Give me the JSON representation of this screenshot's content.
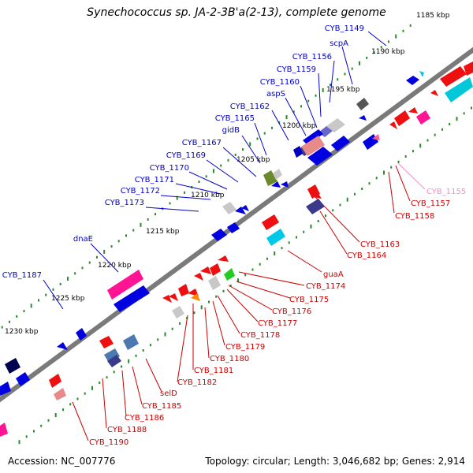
{
  "title": "Synechococcus sp. JA-2-3B'a(2-13), complete genome",
  "footer": {
    "accession": "Accession: NC_007776",
    "summary": "Topology: circular; Length: 3,046,682 bp; Genes: 2,914"
  },
  "colors": {
    "backbone": "#808080",
    "tick": "#2a8a2a",
    "forward_label": "#0000cc",
    "reverse_label": "#cc0000",
    "forward_gene": "#1010e0",
    "reverse_gene": "#ee1010",
    "rrna": "#ff1493",
    "trna": "#808080",
    "highlight_label": "#ff88cc"
  },
  "kbp_labels": [
    "1185 kbp",
    "1190 kbp",
    "1195 kbp",
    "1200 kbp",
    "1205 kbp",
    "1210 kbp",
    "1215 kbp",
    "1220 kbp",
    "1225 kbp",
    "1230 kbp"
  ],
  "forward_gene_labels": [
    "CYB_1149",
    "scpA",
    "CYB_1156",
    "CYB_1159",
    "CYB_1160",
    "aspS",
    "CYB_1162",
    "CYB_1165",
    "gidB",
    "CYB_1167",
    "CYB_1169",
    "CYB_1170",
    "CYB_1171",
    "CYB_1172",
    "CYB_1173",
    "dnaE",
    "CYB_1187"
  ],
  "reverse_gene_labels": [
    "CYB_1155",
    "CYB_1157",
    "CYB_1158",
    "CYB_1163",
    "CYB_1164",
    "guaA",
    "CYB_1174",
    "CYB_1175",
    "CYB_1176",
    "CYB_1177",
    "CYB_1178",
    "CYB_1179",
    "CYB_1180",
    "CYB_1181",
    "CYB_1182",
    "selD",
    "CYB_1185",
    "CYB_1186",
    "CYB_1188",
    "CYB_1190"
  ]
}
